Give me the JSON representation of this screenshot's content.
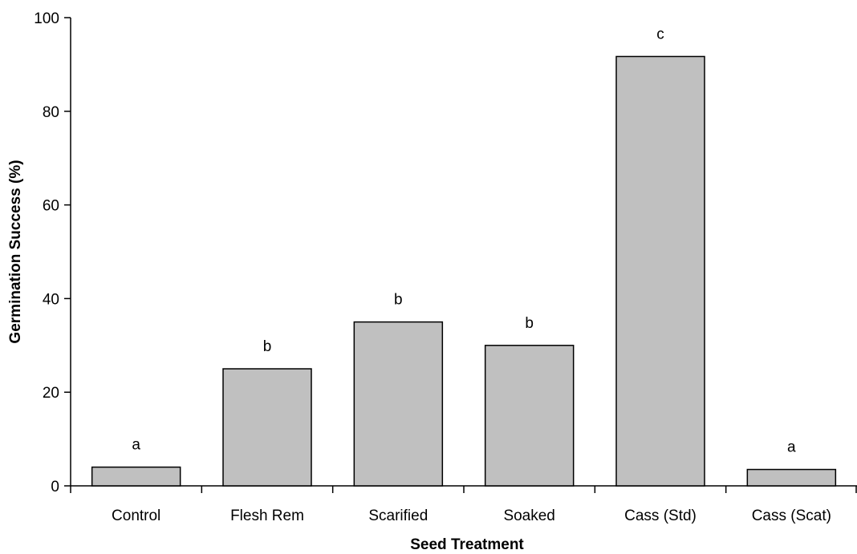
{
  "chart_data": {
    "type": "bar",
    "title": "",
    "xlabel": "Seed Treatment",
    "ylabel": "Germination Success (%)",
    "ylim": [
      0,
      100
    ],
    "yticks": [
      0,
      20,
      40,
      60,
      80,
      100
    ],
    "grid": false,
    "legend": "none",
    "categories": [
      "Control",
      "Flesh Rem",
      "Scarified",
      "Soaked",
      "Cass (Std)",
      "Cass (Scat)"
    ],
    "values": [
      4,
      25,
      35,
      30,
      91.7,
      3.5
    ],
    "significance_letters": [
      "a",
      "b",
      "b",
      "b",
      "c",
      "a"
    ],
    "colors": {
      "bar_fill": "#c0c0c0",
      "bar_stroke": "#000000",
      "axis": "#000000"
    }
  }
}
